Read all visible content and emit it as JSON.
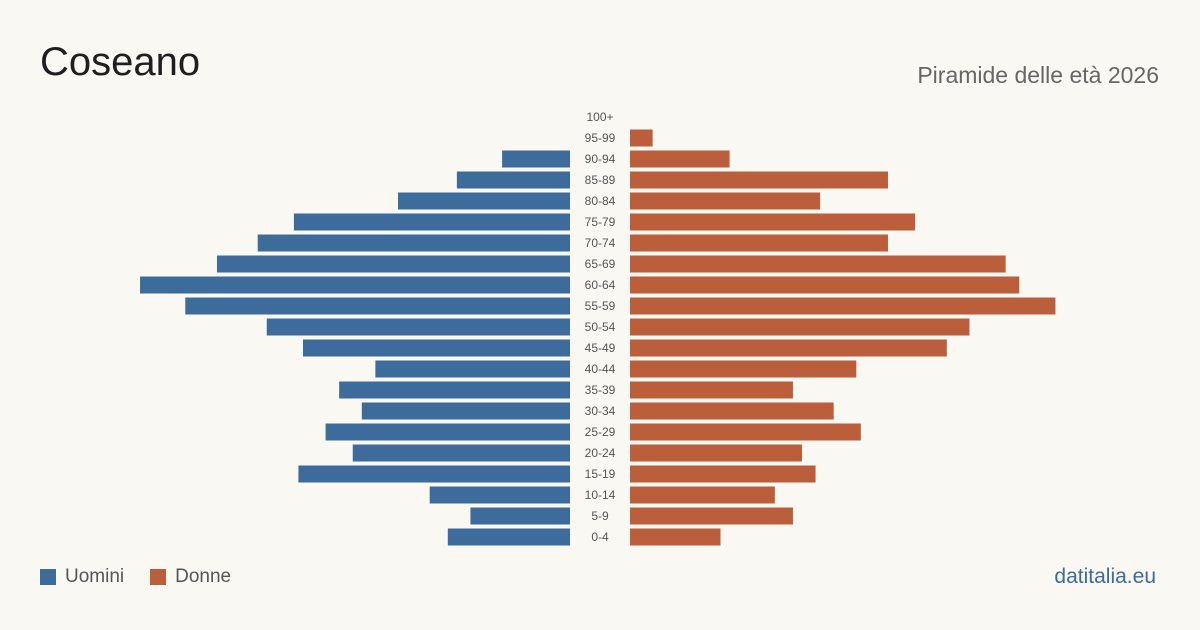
{
  "header": {
    "title": "Coseano",
    "subtitle": "Piramide delle età 2026"
  },
  "legend": {
    "male_label": "Uomini",
    "female_label": "Donne"
  },
  "brand": "datitalia.eu",
  "colors": {
    "male": "#3d6b9b",
    "female": "#bb5e3c",
    "background": "#faf8f3"
  },
  "chart_data": {
    "type": "bar",
    "orientation": "horizontal-pyramid",
    "title": "Coseano",
    "subtitle": "Piramide delle età 2026",
    "categories": [
      "100+",
      "95-99",
      "90-94",
      "85-89",
      "80-84",
      "75-79",
      "70-74",
      "65-69",
      "60-64",
      "55-59",
      "50-54",
      "45-49",
      "40-44",
      "35-39",
      "30-34",
      "25-29",
      "20-24",
      "15-19",
      "10-14",
      "5-9",
      "0-4"
    ],
    "series": [
      {
        "name": "Uomini",
        "values": [
          0,
          0,
          15,
          25,
          38,
          61,
          69,
          78,
          95,
          85,
          67,
          59,
          43,
          51,
          46,
          54,
          48,
          60,
          31,
          22,
          27
        ]
      },
      {
        "name": "Donne",
        "values": [
          0,
          5,
          22,
          57,
          42,
          63,
          57,
          83,
          86,
          94,
          75,
          70,
          50,
          36,
          45,
          51,
          38,
          41,
          32,
          36,
          20
        ]
      }
    ],
    "legend": "bottom-left",
    "grid": false
  }
}
